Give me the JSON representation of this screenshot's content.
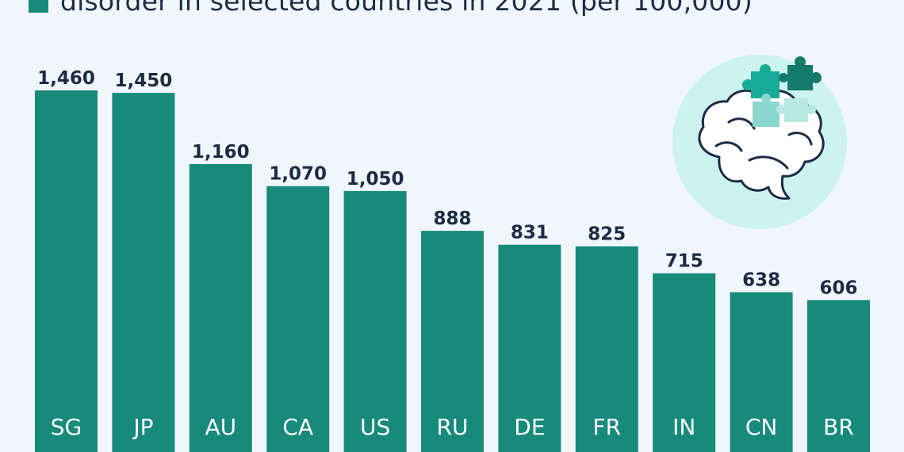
{
  "legend": {
    "text": "disorder in selected countries in 2021 (per 100,000)",
    "color": "#178a7c"
  },
  "chart_data": {
    "type": "bar",
    "categories": [
      "SG",
      "JP",
      "AU",
      "CA",
      "US",
      "RU",
      "DE",
      "FR",
      "IN",
      "CN",
      "BR"
    ],
    "series": [
      {
        "name": "",
        "values": [
          1460,
          1450,
          1160,
          1070,
          1050,
          888,
          831,
          825,
          715,
          638,
          606
        ],
        "labels": [
          "1,460",
          "1,450",
          "1,160",
          "1,070",
          "1,050",
          "888",
          "831",
          "825",
          "715",
          "638",
          "606"
        ]
      }
    ],
    "title": "",
    "xlabel": "",
    "ylabel": "",
    "ylim": [
      0,
      1460
    ],
    "grid": false,
    "bar_color": "#178a7c"
  },
  "illustration": {
    "icon": "brain-puzzle-icon",
    "circle_color": "#cdf3ef",
    "puzzle_colors": [
      "#16ab97",
      "#147a6c",
      "#8ad8cd",
      "#b6e9e1"
    ]
  }
}
